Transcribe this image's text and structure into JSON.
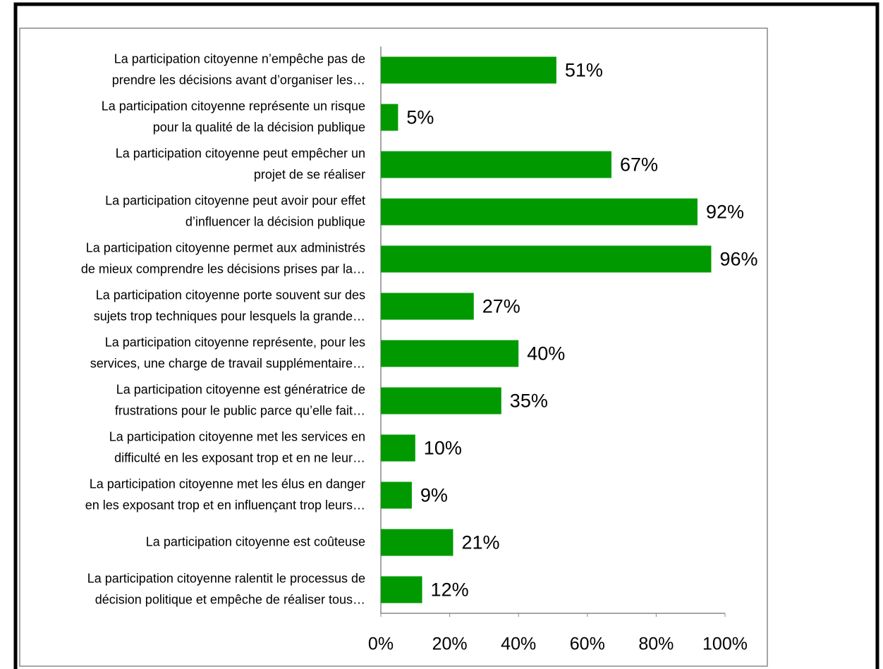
{
  "chart_data": {
    "type": "bar",
    "orientation": "horizontal",
    "color": "#009a00",
    "categories": [
      [
        "La participation citoyenne n’empêche pas de",
        "prendre les décisions avant d’organiser les…"
      ],
      [
        "La participation citoyenne représente un risque",
        "pour la qualité de la décision publique"
      ],
      [
        "La participation citoyenne peut empêcher un",
        "projet de se réaliser"
      ],
      [
        "La participation citoyenne peut avoir pour effet",
        "d’influencer la décision publique"
      ],
      [
        "La participation citoyenne permet aux administrés",
        "de mieux comprendre les décisions prises par la…"
      ],
      [
        "La participation citoyenne porte souvent sur des",
        "sujets trop techniques pour lesquels la grande…"
      ],
      [
        "La participation citoyenne représente, pour les",
        "services, une charge de travail supplémentaire…"
      ],
      [
        "La participation citoyenne est génératrice de",
        "frustrations pour le public parce qu’elle fait…"
      ],
      [
        "La participation citoyenne met les services en",
        "difficulté en les exposant trop et en ne leur…"
      ],
      [
        "La participation citoyenne met les élus en danger",
        "en les exposant trop et en influençant trop leurs…"
      ],
      [
        "La participation citoyenne est coûteuse"
      ],
      [
        "La participation citoyenne ralentit le processus de",
        "décision politique et empêche de réaliser tous…"
      ]
    ],
    "values": [
      51,
      5,
      67,
      92,
      96,
      27,
      40,
      35,
      10,
      9,
      21,
      12
    ],
    "value_labels": [
      "51%",
      "5%",
      "67%",
      "92%",
      "96%",
      "27%",
      "40%",
      "35%",
      "10%",
      "9%",
      "21%",
      "12%"
    ],
    "xlim": [
      0,
      100
    ],
    "xticks": [
      {
        "value": 0,
        "label": "0%"
      },
      {
        "value": 20,
        "label": "20%"
      },
      {
        "value": 40,
        "label": "40%"
      },
      {
        "value": 60,
        "label": "60%"
      },
      {
        "value": 80,
        "label": "80%"
      },
      {
        "value": 100,
        "label": "100%"
      }
    ]
  }
}
